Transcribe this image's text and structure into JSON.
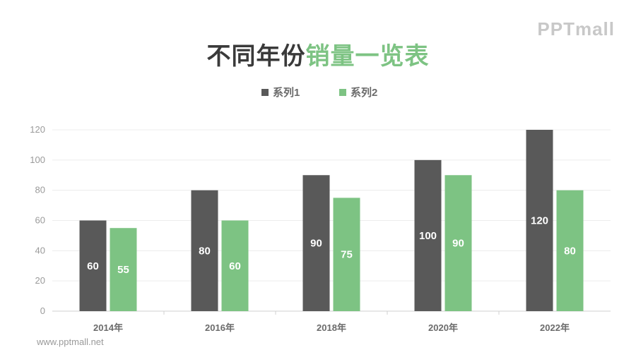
{
  "title": {
    "part1": "不同年份",
    "part2": "销量一览表"
  },
  "logo": "PPTmall",
  "footer_url": "www.pptmall.net",
  "colors": {
    "series1": "#595959",
    "series2": "#7dc383"
  },
  "chart_data": {
    "type": "bar",
    "categories": [
      "2014年",
      "2016年",
      "2018年",
      "2020年",
      "2022年"
    ],
    "series": [
      {
        "name": "系列1",
        "values": [
          60,
          80,
          90,
          100,
          120
        ]
      },
      {
        "name": "系列2",
        "values": [
          55,
          60,
          75,
          90,
          80
        ]
      }
    ],
    "ylim": [
      0,
      120
    ],
    "yticks": [
      0,
      20,
      40,
      60,
      80,
      100,
      120
    ],
    "grid": true,
    "legend": "top-center"
  }
}
